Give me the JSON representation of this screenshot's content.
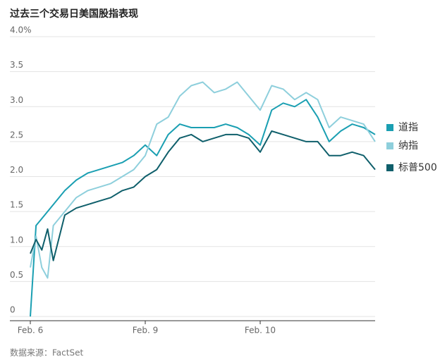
{
  "chart_data": {
    "type": "line",
    "title": "过去三个交易日美国股指表现",
    "source": "数据来源：FactSet",
    "x": [
      0,
      0.05,
      0.1,
      0.15,
      0.2,
      0.3,
      0.4,
      0.5,
      0.6,
      0.7,
      0.8,
      0.9,
      1.0,
      1.1,
      1.2,
      1.3,
      1.4,
      1.5,
      1.6,
      1.7,
      1.8,
      1.9,
      2.0,
      2.1,
      2.2,
      2.3,
      2.4,
      2.5,
      2.6,
      2.7,
      2.8,
      2.9,
      3.0
    ],
    "xlim": [
      0,
      3
    ],
    "xticks": [
      {
        "value": 0,
        "label": "Feb. 6"
      },
      {
        "value": 1,
        "label": "Feb. 9"
      },
      {
        "value": 2,
        "label": "Feb. 10"
      }
    ],
    "ylim": [
      0,
      4
    ],
    "yticks": [
      0,
      0.5,
      {
        "value": 1,
        "label": "1.0"
      },
      1.5,
      {
        "value": 2,
        "label": "2.0"
      },
      2.5,
      {
        "value": 3,
        "label": "3.0"
      },
      3.5,
      {
        "value": 4,
        "label": "4.0%"
      }
    ],
    "grid": true,
    "series": [
      {
        "name": "道指",
        "color": "#1a9fb2",
        "values": [
          0,
          1.3,
          1.4,
          1.5,
          1.6,
          1.8,
          1.95,
          2.05,
          2.1,
          2.15,
          2.2,
          2.3,
          2.45,
          2.3,
          2.6,
          2.75,
          2.7,
          2.7,
          2.7,
          2.75,
          2.7,
          2.6,
          2.45,
          2.95,
          3.05,
          3.0,
          3.1,
          2.85,
          2.5,
          2.65,
          2.75,
          2.7,
          2.6
        ]
      },
      {
        "name": "纳指",
        "color": "#8ecfdc",
        "values": [
          0.7,
          1.15,
          0.7,
          0.55,
          1.3,
          1.5,
          1.7,
          1.8,
          1.85,
          1.9,
          2.0,
          2.1,
          2.3,
          2.75,
          2.85,
          3.15,
          3.3,
          3.35,
          3.2,
          3.25,
          3.35,
          3.15,
          2.95,
          3.3,
          3.25,
          3.1,
          3.2,
          3.1,
          2.7,
          2.85,
          2.8,
          2.75,
          2.5
        ]
      },
      {
        "name": "标普500",
        "color": "#0f5f6b",
        "values": [
          0.9,
          1.1,
          0.95,
          1.25,
          0.8,
          1.45,
          1.55,
          1.6,
          1.65,
          1.7,
          1.8,
          1.85,
          2.0,
          2.1,
          2.35,
          2.55,
          2.6,
          2.5,
          2.55,
          2.6,
          2.6,
          2.55,
          2.35,
          2.65,
          2.6,
          2.55,
          2.5,
          2.5,
          2.3,
          2.3,
          2.35,
          2.3,
          2.1
        ]
      }
    ]
  }
}
